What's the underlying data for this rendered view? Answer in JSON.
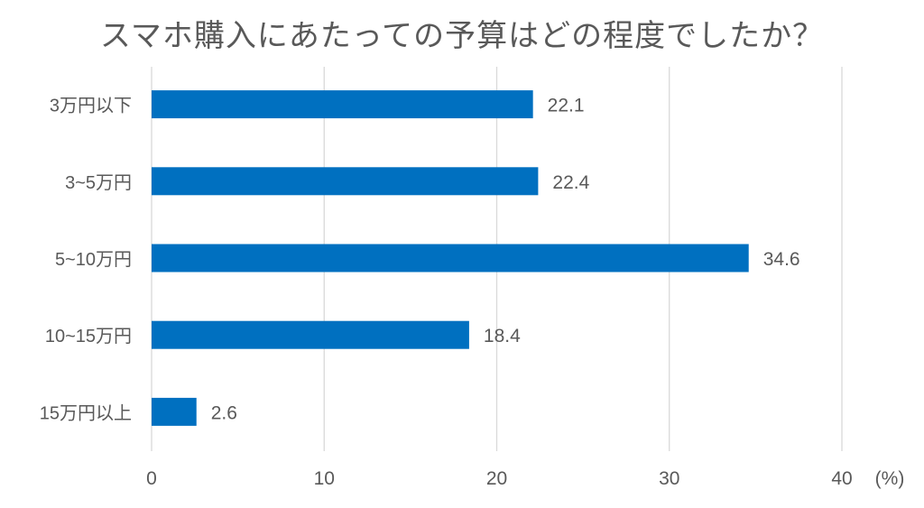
{
  "chart_data": {
    "type": "bar",
    "orientation": "horizontal",
    "title": "スマホ購入にあたっての予算はどの程度でしたか？",
    "unit_label": "(%)",
    "categories": [
      "3万円以下",
      "3~5万円",
      "5~10万円",
      "10~15万円",
      "15万円以上"
    ],
    "values": [
      22.1,
      22.4,
      34.6,
      18.4,
      2.6
    ],
    "data_labels": [
      "22.1",
      "22.4",
      "34.6",
      "18.4",
      "2.6"
    ],
    "x_ticks": [
      0,
      10,
      20,
      30,
      40
    ],
    "xlim": [
      0,
      40
    ],
    "grid": "vertical",
    "legend": "none",
    "bar_color": "#0070C0",
    "text_color": "#595959",
    "grid_color": "#D9D9D9"
  }
}
